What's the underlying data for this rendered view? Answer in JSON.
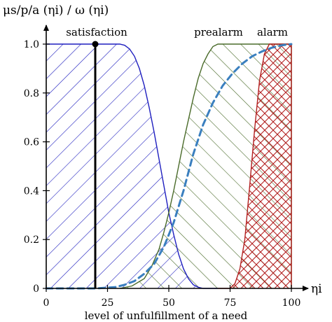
{
  "chart_data": {
    "type": "area",
    "title": "",
    "ylabel": "μs/p/a (ηi) / ω (ηi)",
    "xlabel": "level of unfulfillment of a need",
    "x_axis_symbol": "ηi",
    "xlim": [
      0,
      100
    ],
    "ylim": [
      0,
      1.0
    ],
    "x_ticks": [
      0,
      25,
      50,
      75,
      100
    ],
    "y_ticks": [
      0,
      0.2,
      0.4,
      0.6,
      0.8,
      1.0
    ],
    "x_tick_labels": [
      "0",
      "25",
      "50",
      "75",
      "100"
    ],
    "y_tick_labels": [
      "0",
      "0.2",
      "0.4",
      "0.6",
      "0.8",
      "1.0"
    ],
    "grid": false,
    "series": [
      {
        "name": "satisfaction",
        "color": "#1f1fbf",
        "hatch": "diagonal-down",
        "x": [
          0,
          30,
          32,
          34,
          36,
          38,
          40,
          42,
          44,
          46,
          48,
          50,
          52,
          54,
          56,
          58,
          60,
          62,
          64,
          66,
          68,
          70
        ],
        "y": [
          1.0,
          1.0,
          0.995,
          0.98,
          0.95,
          0.9,
          0.83,
          0.74,
          0.64,
          0.53,
          0.42,
          0.31,
          0.22,
          0.14,
          0.08,
          0.04,
          0.015,
          0.005,
          0.0,
          0.0,
          0.0,
          0.0
        ]
      },
      {
        "name": "prealarm",
        "color": "#4a6b2a",
        "hatch": "diagonal-up",
        "x": [
          30,
          35,
          40,
          43,
          46,
          48,
          50,
          52,
          54,
          56,
          58,
          60,
          62,
          64,
          66,
          68,
          70,
          80,
          100
        ],
        "y": [
          0.0,
          0.01,
          0.04,
          0.09,
          0.16,
          0.23,
          0.31,
          0.4,
          0.5,
          0.6,
          0.69,
          0.78,
          0.86,
          0.92,
          0.96,
          0.99,
          1.0,
          1.0,
          1.0
        ]
      },
      {
        "name": "alarm",
        "color": "#b22020",
        "hatch": "cross",
        "x": [
          70,
          75,
          77,
          79,
          81,
          83,
          85,
          87,
          89,
          91,
          100
        ],
        "y": [
          0.0,
          0.0,
          0.02,
          0.08,
          0.2,
          0.42,
          0.65,
          0.85,
          0.96,
          1.0,
          1.0
        ]
      },
      {
        "name": "",
        "color": "#3a7fbf",
        "style": "dashed",
        "x": [
          0,
          20,
          28,
          32,
          36,
          40,
          44,
          48,
          52,
          56,
          60,
          64,
          68,
          72,
          76,
          80,
          84,
          88,
          92,
          96,
          100
        ],
        "y": [
          0.0,
          0.0,
          0.005,
          0.015,
          0.03,
          0.06,
          0.1,
          0.17,
          0.27,
          0.4,
          0.55,
          0.67,
          0.76,
          0.83,
          0.88,
          0.92,
          0.95,
          0.97,
          0.985,
          0.995,
          1.0
        ]
      }
    ],
    "marker_line": {
      "x": 20,
      "y_top": 1.0,
      "color": "#000000"
    }
  }
}
